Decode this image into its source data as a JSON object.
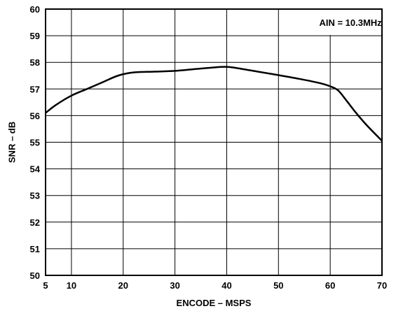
{
  "chart_data": {
    "type": "line",
    "title": "",
    "xlabel": "ENCODE – MSPS",
    "ylabel": "SNR – dB",
    "xlim": [
      5,
      70
    ],
    "ylim": [
      50,
      60
    ],
    "x_ticks": [
      5,
      10,
      20,
      30,
      40,
      50,
      60,
      70
    ],
    "y_ticks": [
      50,
      51,
      52,
      53,
      54,
      55,
      56,
      57,
      58,
      59,
      60
    ],
    "grid": true,
    "annotation": "AIN = 10.3MHz",
    "series": [
      {
        "name": "",
        "color": "#000000",
        "x": [
          5,
          7,
          10,
          13,
          16,
          19,
          22,
          26,
          30,
          34,
          37,
          40,
          43,
          46,
          50,
          54,
          58,
          60,
          61.5,
          63,
          65,
          67,
          70
        ],
        "y": [
          56.1,
          56.4,
          56.75,
          57.0,
          57.25,
          57.5,
          57.62,
          57.65,
          57.68,
          57.75,
          57.8,
          57.83,
          57.75,
          57.65,
          57.52,
          57.38,
          57.22,
          57.1,
          56.95,
          56.6,
          56.1,
          55.65,
          55.05
        ]
      }
    ]
  }
}
